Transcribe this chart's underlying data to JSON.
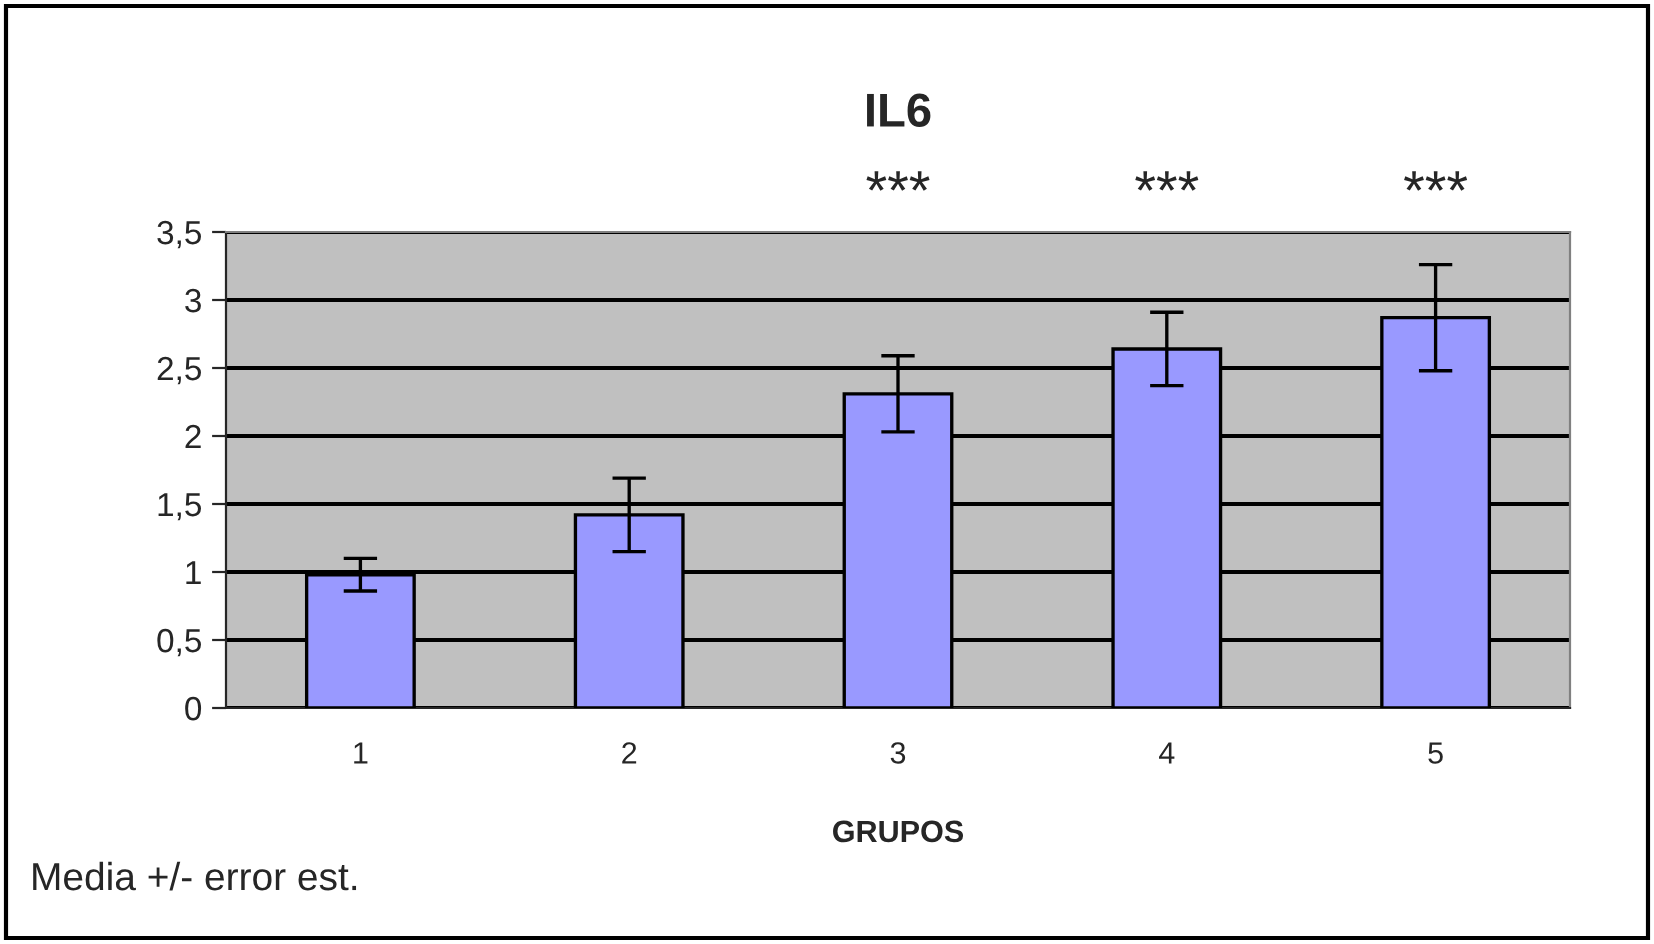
{
  "chart_data": {
    "type": "bar",
    "title": "IL6",
    "xlabel": "GRUPOS",
    "categories": [
      "1",
      "2",
      "3",
      "4",
      "5"
    ],
    "values": [
      0.98,
      1.42,
      2.31,
      2.64,
      2.87
    ],
    "errors": [
      0.12,
      0.27,
      0.28,
      0.27,
      0.39
    ],
    "color": "#9999ff",
    "ylim": [
      0,
      3.5
    ],
    "yticks": [
      0,
      {
        "value": 0.5,
        "label": "0,5"
      },
      1,
      {
        "value": 1.5,
        "label": "1,5"
      },
      2,
      {
        "value": 2.5,
        "label": "2,5"
      },
      3,
      {
        "value": 3.5,
        "label": "3,5"
      }
    ],
    "grid": "y",
    "annotations": [
      "***",
      "***",
      "***",
      "Media +/- error est."
    ]
  }
}
